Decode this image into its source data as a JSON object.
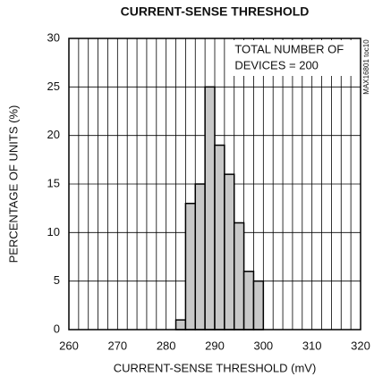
{
  "chart_data": {
    "type": "histogram",
    "title": "CURRENT-SENSE THRESHOLD",
    "x_label": "CURRENT-SENSE THRESHOLD (mV)",
    "y_label": "PERCENTAGE OF UNITS (%)",
    "annotation": [
      "TOTAL NUMBER OF",
      "DEVICES = 200"
    ],
    "side_note": "MAX16801 toc10",
    "bins": [
      282,
      284,
      286,
      288,
      290,
      292,
      294,
      296,
      298,
      300
    ],
    "values": [
      1,
      13,
      15,
      25,
      19,
      16,
      11,
      6,
      5
    ],
    "color": "#c8c8c8",
    "xlim": [
      260,
      320
    ],
    "xticks": [
      260,
      270,
      280,
      290,
      300,
      310,
      320
    ],
    "xgrid": [
      262,
      264,
      266,
      268,
      272,
      274,
      276,
      278,
      282,
      284,
      286,
      288,
      292,
      294,
      296,
      298,
      302,
      304,
      306,
      308,
      312,
      314,
      316,
      318
    ],
    "ylim": [
      0,
      30
    ],
    "yticks": [
      0,
      5,
      10,
      15,
      20,
      25,
      30
    ],
    "grid": true
  }
}
